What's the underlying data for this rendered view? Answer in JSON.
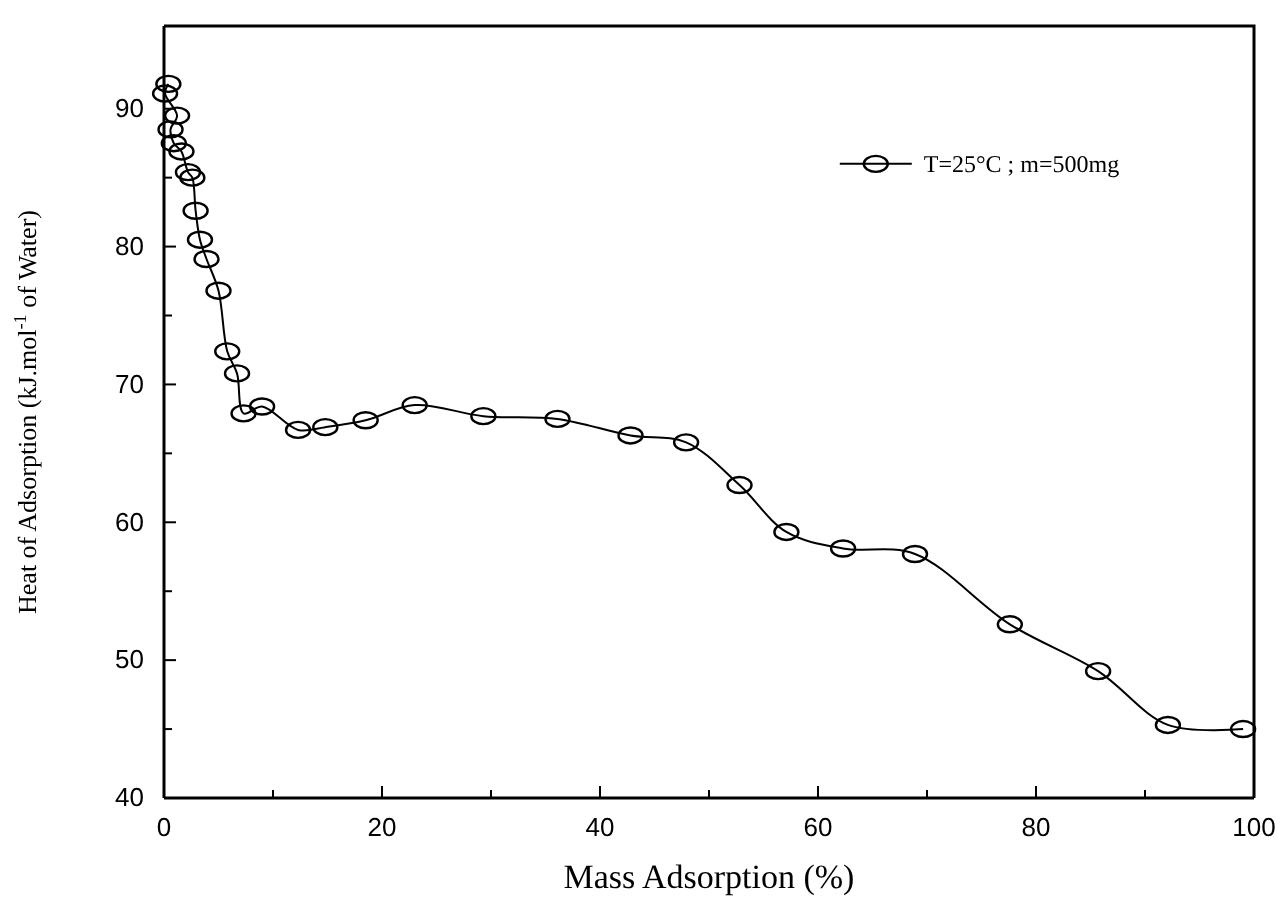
{
  "chart_data": {
    "type": "line",
    "xlabel": "Mass Adsorption (%)",
    "ylabel": "Heat of Adsorption (kJ.mol$^{-1}$ of Water)",
    "xlim": [
      0,
      100
    ],
    "ylim": [
      40,
      96
    ],
    "xticks": [
      0,
      {
        "value": 10,
        "label": null
      },
      20,
      {
        "value": 30,
        "label": null
      },
      40,
      {
        "value": 50,
        "label": null
      },
      60,
      {
        "value": 70,
        "label": null
      },
      80,
      {
        "value": 90,
        "label": null
      },
      100
    ],
    "yticks": [
      40,
      {
        "value": 45,
        "label": null
      },
      50,
      {
        "value": 55,
        "label": null
      },
      60,
      {
        "value": 65,
        "label": null
      },
      70,
      {
        "value": 75,
        "label": null
      },
      80,
      {
        "value": 85,
        "label": null
      },
      90
    ],
    "grid": false,
    "legend": "top right",
    "marker": "circle",
    "line_style": "solid",
    "series": [
      {
        "name": "T=25°C ; m=500mg",
        "color": "#000000",
        "x": [
          0.4,
          0.1,
          1.2,
          0.6,
          0.9,
          1.6,
          2.2,
          2.6,
          2.9,
          3.3,
          3.9,
          5.0,
          5.8,
          6.7,
          7.3,
          9.0,
          12.3,
          14.8,
          18.5,
          23.0,
          29.3,
          36.1,
          42.8,
          47.9,
          52.8,
          57.1,
          62.3,
          68.9,
          77.6,
          85.7,
          92.1,
          99.0
        ],
        "values": [
          91.8,
          91.1,
          89.5,
          88.5,
          87.5,
          86.9,
          85.4,
          85.0,
          82.6,
          80.5,
          79.1,
          76.8,
          72.4,
          70.8,
          67.9,
          68.4,
          66.7,
          66.9,
          67.4,
          68.5,
          67.7,
          67.5,
          66.3,
          65.8,
          62.7,
          59.3,
          58.1,
          57.7,
          52.6,
          49.2,
          45.3,
          45.0
        ]
      }
    ]
  }
}
